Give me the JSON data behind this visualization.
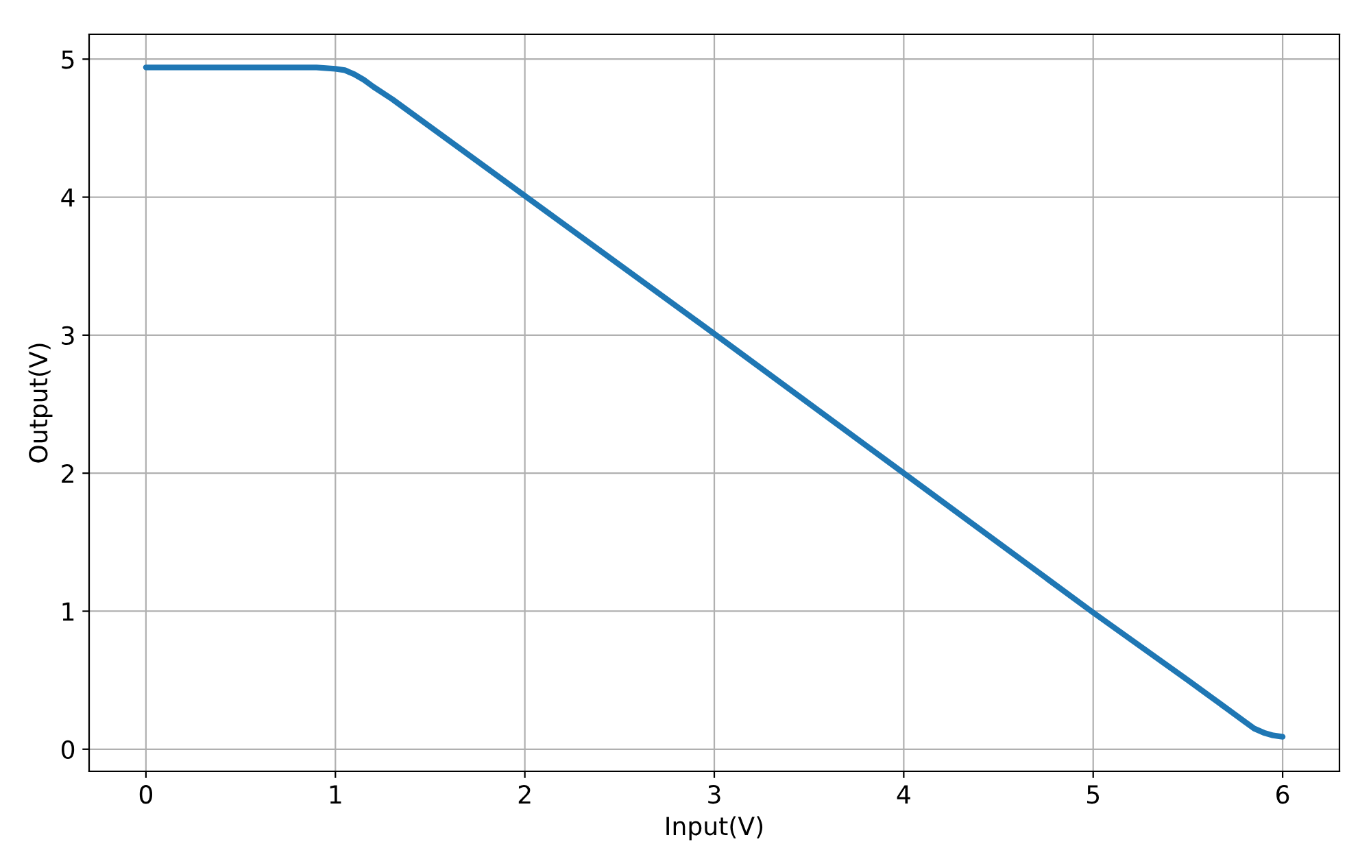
{
  "chart_data": {
    "type": "line",
    "xlabel": "Input(V)",
    "ylabel": "Output(V)",
    "x": [
      0,
      0.5,
      0.9,
      1.0,
      1.05,
      1.1,
      1.15,
      1.2,
      1.3,
      1.5,
      2,
      3,
      4,
      5,
      5.5,
      5.7,
      5.8,
      5.85,
      5.9,
      5.95,
      6
    ],
    "series": [
      {
        "color": "#1f77b4",
        "values": [
          4.94,
          4.94,
          4.94,
          4.93,
          4.92,
          4.89,
          4.85,
          4.8,
          4.71,
          4.51,
          4.01,
          3.01,
          2.0,
          0.99,
          0.5,
          0.3,
          0.2,
          0.15,
          0.12,
          0.1,
          0.09
        ]
      }
    ],
    "xlim": [
      -0.3,
      6.3
    ],
    "ylim": [
      -0.16,
      5.18
    ],
    "xticks": [
      0,
      1,
      2,
      3,
      4,
      5,
      6
    ],
    "yticks": [
      0,
      1,
      2,
      3,
      4,
      5
    ],
    "grid": true,
    "legend": false,
    "line_style": "solid",
    "marker": "none"
  }
}
